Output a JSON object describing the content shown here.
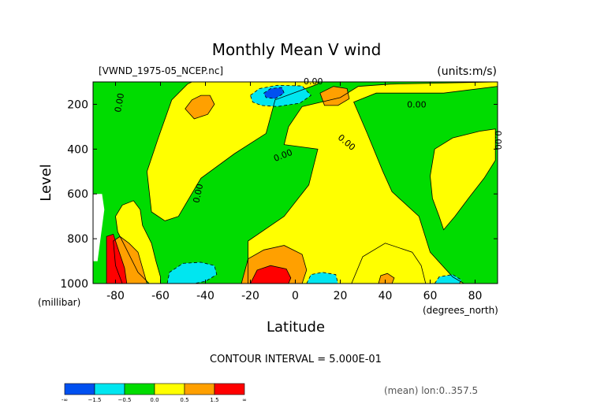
{
  "chart_data": {
    "type": "heatmap",
    "title": "Monthly Mean V wind",
    "file_label": "[VWND_1975-05_NCEP.nc]",
    "units_label": "(units:m/s)",
    "ylabel": "Level",
    "yunit": "(millibar)",
    "xlabel": "Latitude",
    "xunit": "(degrees_north)",
    "contour_interval_label": "CONTOUR INTERVAL = 5.000E-01",
    "footer_label": "(mean) lon:0..357.5",
    "xlim": [
      -90,
      90
    ],
    "ylim": [
      1000,
      100
    ],
    "x_ticks": [
      -80,
      -60,
      -40,
      -20,
      0,
      20,
      40,
      60,
      80
    ],
    "x_tick_labels": [
      "-80",
      "-60",
      "-40",
      "-20",
      "0",
      "20",
      "40",
      "60",
      "80"
    ],
    "y_ticks": [
      200,
      400,
      600,
      800,
      1000
    ],
    "y_tick_labels": [
      "200",
      "400",
      "600",
      "800",
      "1000"
    ],
    "contour_labels": [
      {
        "text": "0.00",
        "lat": 8,
        "lev": 110,
        "angle": 0
      },
      {
        "text": "0.00",
        "lat": 54,
        "lev": 215,
        "angle": 0
      },
      {
        "text": "0.00",
        "lat": -77,
        "lev": 195,
        "angle": -80
      },
      {
        "text": "0.00",
        "lat": -5,
        "lev": 440,
        "angle": -22
      },
      {
        "text": "0.00",
        "lat": 22,
        "lev": 380,
        "angle": 40
      },
      {
        "text": "0.00",
        "lat": -42,
        "lev": 600,
        "angle": -78
      },
      {
        "text": "0.00",
        "lat": 89,
        "lev": 360,
        "angle": 90
      }
    ],
    "colorbar": {
      "colors": [
        "#0050f0",
        "#00e6f0",
        "#00dc00",
        "#ffff00",
        "#ffa000",
        "#ff0000"
      ],
      "tick_labels": [
        "-∞",
        "−1.5",
        "−0.5",
        "0.0",
        "0.5",
        "1.5",
        "∞"
      ]
    },
    "regions": [
      {
        "name": "yellow-upper-center",
        "value": 0.25,
        "poly": [
          [
            -46,
            100
          ],
          [
            10,
            100
          ],
          [
            10,
            110
          ],
          [
            -9,
            180
          ],
          [
            -13,
            330
          ],
          [
            -27,
            420
          ],
          [
            -42,
            530
          ],
          [
            -52,
            700
          ],
          [
            -58,
            720
          ],
          [
            -64,
            680
          ],
          [
            -66,
            500
          ],
          [
            -61,
            350
          ],
          [
            -55,
            180
          ],
          [
            -48,
            110
          ]
        ]
      },
      {
        "name": "yellow-lower-center",
        "value": 0.25,
        "poly": [
          [
            -21,
            1000
          ],
          [
            -21,
            810
          ],
          [
            -5,
            700
          ],
          [
            6,
            560
          ],
          [
            10,
            400
          ],
          [
            -5,
            380
          ],
          [
            -3,
            300
          ],
          [
            3,
            210
          ],
          [
            20,
            170
          ],
          [
            28,
            120
          ],
          [
            42,
            110
          ],
          [
            90,
            100
          ],
          [
            90,
            120
          ],
          [
            66,
            150
          ],
          [
            53,
            150
          ],
          [
            36,
            150
          ],
          [
            26,
            190
          ],
          [
            32,
            330
          ],
          [
            39,
            500
          ],
          [
            43,
            590
          ],
          [
            55,
            700
          ],
          [
            60,
            860
          ],
          [
            70,
            970
          ],
          [
            75,
            1000
          ]
        ]
      },
      {
        "name": "yellow-left-tongue",
        "value": 0.25,
        "poly": [
          [
            -80,
            700
          ],
          [
            -77,
            650
          ],
          [
            -72,
            630
          ],
          [
            -69,
            670
          ],
          [
            -68,
            740
          ],
          [
            -64,
            820
          ],
          [
            -62,
            900
          ],
          [
            -60,
            970
          ],
          [
            -60,
            1000
          ],
          [
            -65,
            1000
          ],
          [
            -70,
            950
          ],
          [
            -75,
            850
          ],
          [
            -79,
            770
          ]
        ]
      },
      {
        "name": "yellow-right-upper",
        "value": 0.25,
        "poly": [
          [
            62,
            400
          ],
          [
            70,
            350
          ],
          [
            82,
            320
          ],
          [
            89,
            310
          ],
          [
            89,
            450
          ],
          [
            84,
            530
          ],
          [
            77,
            620
          ],
          [
            71,
            700
          ],
          [
            66,
            760
          ],
          [
            64,
            700
          ],
          [
            61,
            620
          ],
          [
            60,
            520
          ]
        ]
      },
      {
        "name": "yellow-lower-right",
        "value": 0.25,
        "poly": [
          [
            25,
            1000
          ],
          [
            30,
            880
          ],
          [
            40,
            820
          ],
          [
            52,
            860
          ],
          [
            56,
            920
          ],
          [
            58,
            1000
          ]
        ]
      },
      {
        "name": "orange-left",
        "value": 0.75,
        "poly": [
          [
            -81,
            810
          ],
          [
            -78,
            790
          ],
          [
            -74,
            820
          ],
          [
            -70,
            860
          ],
          [
            -68,
            930
          ],
          [
            -66,
            1000
          ],
          [
            -77,
            1000
          ],
          [
            -80,
            920
          ]
        ]
      },
      {
        "name": "orange-upper-left",
        "value": 0.75,
        "poly": [
          [
            -38,
            160
          ],
          [
            -36,
            200
          ],
          [
            -39,
            245
          ],
          [
            -45,
            265
          ],
          [
            -49,
            220
          ],
          [
            -46,
            180
          ],
          [
            -42,
            160
          ]
        ]
      },
      {
        "name": "orange-upper-mid",
        "value": 0.75,
        "poly": [
          [
            11,
            150
          ],
          [
            17,
            120
          ],
          [
            23,
            130
          ],
          [
            24,
            175
          ],
          [
            19,
            205
          ],
          [
            13,
            205
          ]
        ]
      },
      {
        "name": "orange-bottom-center",
        "value": 0.75,
        "poly": [
          [
            -24,
            1000
          ],
          [
            -21,
            890
          ],
          [
            -14,
            850
          ],
          [
            -5,
            830
          ],
          [
            3,
            870
          ],
          [
            5,
            940
          ],
          [
            3,
            1000
          ]
        ]
      },
      {
        "name": "orange-bottom-right",
        "value": 0.75,
        "poly": [
          [
            37,
            1000
          ],
          [
            38,
            965
          ],
          [
            41,
            955
          ],
          [
            44,
            975
          ],
          [
            43,
            1000
          ]
        ]
      },
      {
        "name": "red-left",
        "value": 1.75,
        "poly": [
          [
            -84,
            790
          ],
          [
            -81,
            780
          ],
          [
            -79,
            840
          ],
          [
            -76,
            930
          ],
          [
            -75,
            1000
          ],
          [
            -84,
            1000
          ]
        ]
      },
      {
        "name": "red-bottom-center",
        "value": 1.75,
        "poly": [
          [
            -20,
            1000
          ],
          [
            -17,
            940
          ],
          [
            -11,
            920
          ],
          [
            -4,
            935
          ],
          [
            -2,
            975
          ],
          [
            -3,
            1000
          ]
        ]
      },
      {
        "name": "cyan-upper-center",
        "value": -1.0,
        "poly": [
          [
            -20,
            160
          ],
          [
            -16,
            130
          ],
          [
            -8,
            115
          ],
          [
            3,
            118
          ],
          [
            7,
            160
          ],
          [
            2,
            195
          ],
          [
            -8,
            210
          ],
          [
            -15,
            205
          ],
          [
            -19,
            190
          ]
        ]
      },
      {
        "name": "cyan-bottom-left",
        "value": -1.0,
        "poly": [
          [
            -57,
            1000
          ],
          [
            -56,
            950
          ],
          [
            -50,
            910
          ],
          [
            -42,
            905
          ],
          [
            -36,
            920
          ],
          [
            -35,
            960
          ],
          [
            -40,
            990
          ],
          [
            -45,
            1000
          ]
        ]
      },
      {
        "name": "cyan-bottom-mid",
        "value": -1.0,
        "poly": [
          [
            5,
            1000
          ],
          [
            7,
            960
          ],
          [
            12,
            950
          ],
          [
            18,
            960
          ],
          [
            19,
            1000
          ]
        ]
      },
      {
        "name": "cyan-bottom-right",
        "value": -1.0,
        "poly": [
          [
            62,
            1000
          ],
          [
            64,
            970
          ],
          [
            70,
            960
          ],
          [
            74,
            985
          ],
          [
            73,
            1000
          ]
        ]
      },
      {
        "name": "blue-upper-center",
        "value": -2.0,
        "poly": [
          [
            -14,
            150
          ],
          [
            -11,
            130
          ],
          [
            -6,
            125
          ],
          [
            -5,
            150
          ],
          [
            -9,
            175
          ],
          [
            -13,
            170
          ]
        ]
      },
      {
        "name": "white-missing",
        "value": null,
        "poly": [
          [
            -90,
            600
          ],
          [
            -86,
            600
          ],
          [
            -85,
            670
          ],
          [
            -88,
            900
          ],
          [
            -90,
            900
          ]
        ]
      }
    ]
  }
}
